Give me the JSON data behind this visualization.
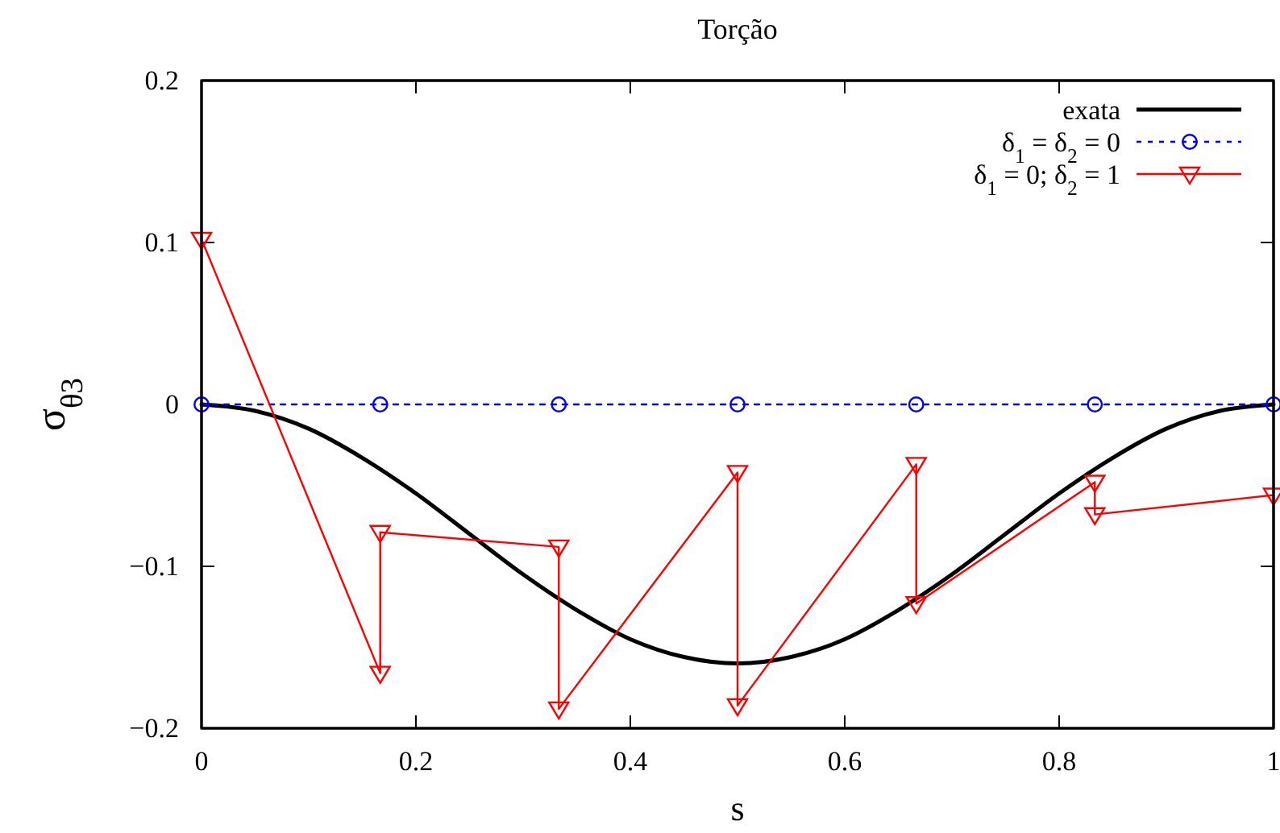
{
  "chart_data": {
    "type": "line",
    "title": "Torção",
    "xlabel": "s",
    "ylabel": "σ$_{θ3}$",
    "xlim": [
      0,
      1
    ],
    "xticks": [
      0,
      0.2,
      0.4,
      0.6,
      0.8,
      1
    ],
    "ylim": [
      -0.2,
      0.2
    ],
    "yticks": [
      {
        "value": -0.2,
        "label": "−0.2"
      },
      {
        "value": -0.1,
        "label": "−0.1"
      },
      0,
      0.1,
      0.2
    ],
    "grid": false,
    "legend": "top right",
    "series": [
      {
        "name": "exata",
        "color": "#000000",
        "marker": "none",
        "line_style": "solid",
        "x": [
          0,
          0.05,
          0.1,
          0.15,
          0.2,
          0.25,
          0.3,
          0.35,
          0.4,
          0.45,
          0.5,
          0.55,
          0.6,
          0.65,
          0.7,
          0.75,
          0.8,
          0.85,
          0.9,
          0.95,
          1
        ],
        "values": [
          0,
          -0.004,
          -0.015,
          -0.033,
          -0.055,
          -0.08,
          -0.105,
          -0.127,
          -0.145,
          -0.156,
          -0.16,
          -0.156,
          -0.145,
          -0.127,
          -0.105,
          -0.08,
          -0.055,
          -0.033,
          -0.015,
          -0.004,
          0
        ]
      },
      {
        "name": "δ$_{1}$ = δ$_{2}$ = 0",
        "color": "#0000ff",
        "marker": "circle",
        "line_style": "dotted",
        "x": [
          0,
          0.1667,
          0.3333,
          0.5,
          0.6667,
          0.8333,
          1
        ],
        "values": [
          0,
          0,
          0,
          0,
          0,
          0,
          0
        ]
      },
      {
        "name": "δ$_{1}$ = 0; δ$_{2}$ = 1",
        "color": "#ff0000",
        "marker": "triangle",
        "line_style": "solid",
        "x": [
          0,
          0.1667,
          0.1667,
          0.3333,
          0.3333,
          0.5,
          0.5,
          0.6667,
          0.6667,
          0.8333,
          0.8333,
          1
        ],
        "values": [
          0.102,
          -0.166,
          -0.079,
          -0.088,
          -0.188,
          -0.042,
          -0.186,
          -0.037,
          -0.123,
          -0.048,
          -0.068,
          -0.056
        ]
      }
    ]
  }
}
